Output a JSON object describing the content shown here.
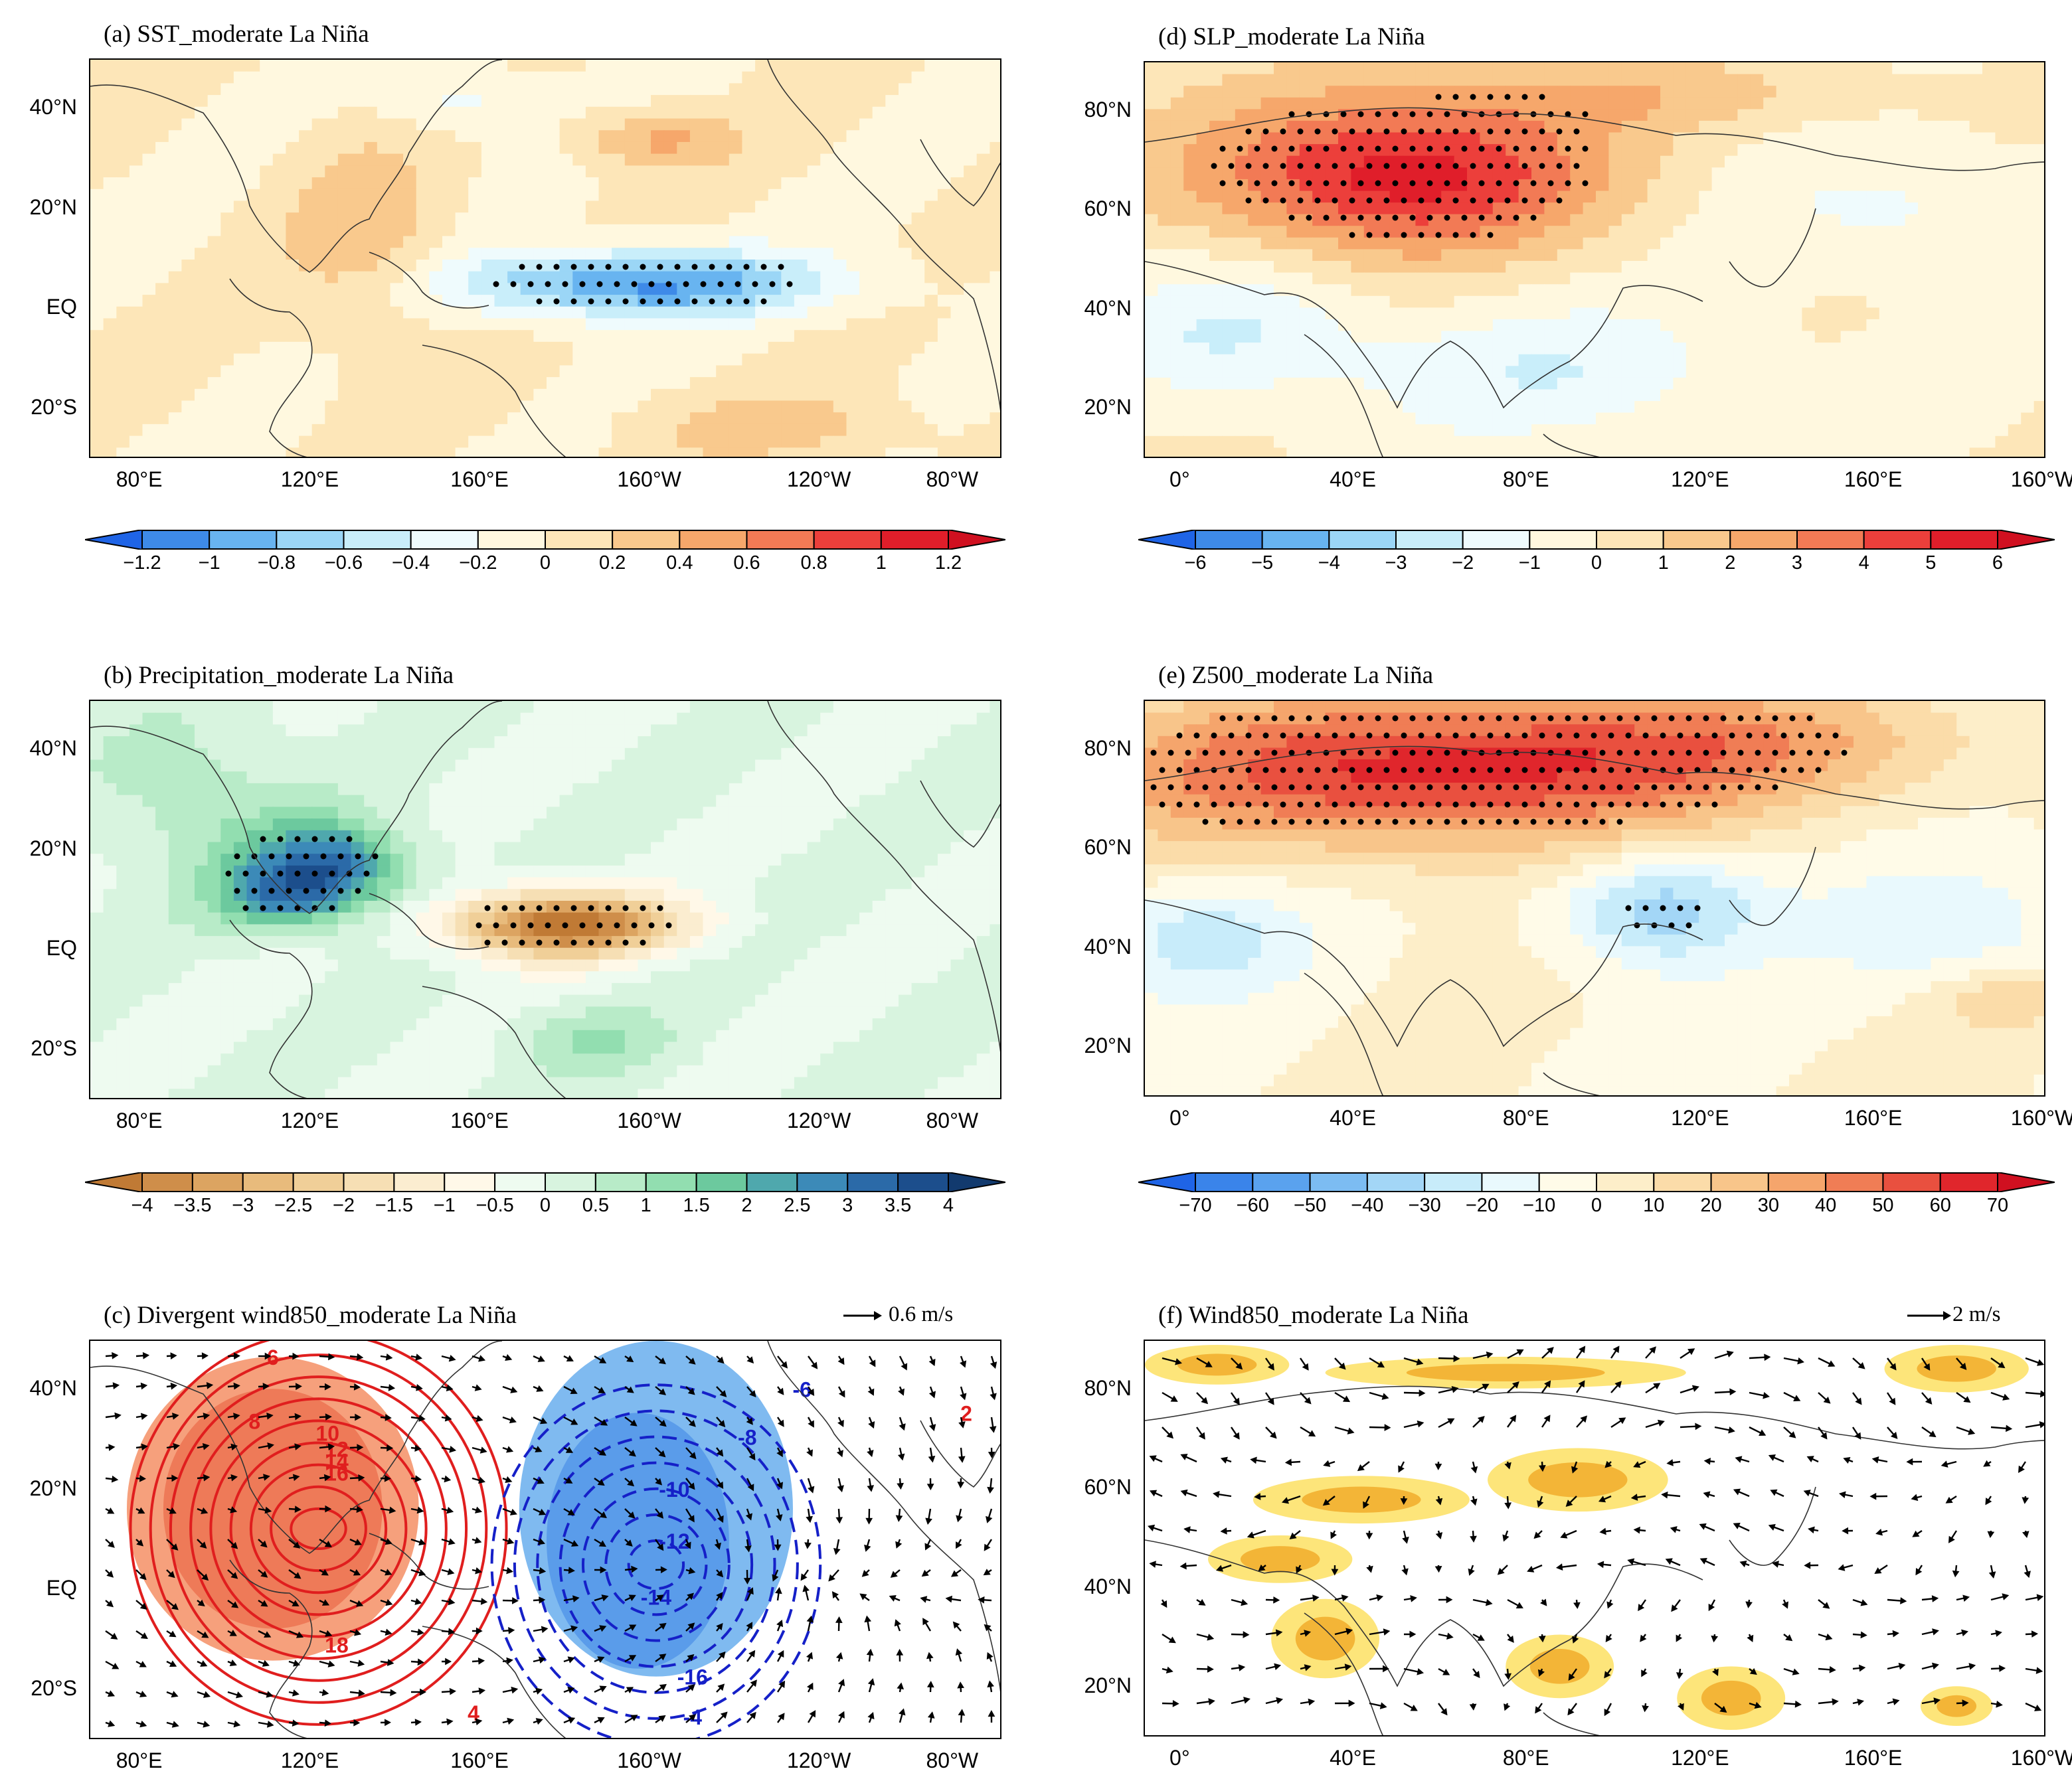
{
  "figure": {
    "panels": [
      {
        "id": "a",
        "title": "(a) SST_moderate La Niña",
        "kind": "sst"
      },
      {
        "id": "b",
        "title": "(b) Precipitation_moderate La Niña",
        "kind": "precip"
      },
      {
        "id": "c",
        "title": "(c) Divergent wind850_moderate La Niña",
        "kind": "divwind",
        "ref_vector": "0.6 m/s"
      },
      {
        "id": "d",
        "title": "(d) SLP_moderate La Niña",
        "kind": "slp"
      },
      {
        "id": "e",
        "title": "(e) Z500_moderate La Niña",
        "kind": "z500"
      },
      {
        "id": "f",
        "title": "(f) Wind850_moderate La Niña",
        "kind": "wind",
        "ref_vector": "2 m/s"
      }
    ],
    "pacific_axes": {
      "x_ticks": [
        "80°E",
        "120°E",
        "160°E",
        "160°W",
        "120°W",
        "80°W"
      ],
      "y_ticks": [
        "40°N",
        "20°N",
        "EQ",
        "20°S"
      ]
    },
    "eurasia_axes": {
      "x_ticks": [
        "0°",
        "40°E",
        "80°E",
        "120°E",
        "160°E",
        "160°W"
      ],
      "y_ticks": [
        "80°N",
        "60°N",
        "40°N",
        "20°N"
      ]
    },
    "colorbars": {
      "sst": {
        "labels": [
          "−1.2",
          "−1",
          "−0.8",
          "−0.6",
          "−0.4",
          "−0.2",
          "0",
          "0.2",
          "0.4",
          "0.6",
          "0.8",
          "1",
          "1.2"
        ],
        "colors": [
          "#1f64e6",
          "#3e8ae8",
          "#68b4f0",
          "#9bd6f6",
          "#c9eefa",
          "#effbfd",
          "#fff8df",
          "#fde6b8",
          "#f9c98d",
          "#f6a76b",
          "#f27a55",
          "#ec3f3b",
          "#e01e2a",
          "#d01020"
        ]
      },
      "slp": {
        "labels": [
          "−6",
          "−5",
          "−4",
          "−3",
          "−2",
          "−1",
          "0",
          "1",
          "2",
          "3",
          "4",
          "5",
          "6"
        ],
        "colors": [
          "#1f64e6",
          "#3e8ae8",
          "#68b4f0",
          "#9bd6f6",
          "#c9eefa",
          "#effbfd",
          "#fff8df",
          "#fde6b8",
          "#f9c98d",
          "#f6a76b",
          "#f27a55",
          "#ec3f3b",
          "#e01e2a",
          "#d01020"
        ]
      },
      "precip": {
        "labels": [
          "−4",
          "−3.5",
          "−3",
          "−2.5",
          "−2",
          "−1.5",
          "−1",
          "−0.5",
          "0",
          "0.5",
          "1",
          "1.5",
          "2",
          "2.5",
          "3",
          "3.5",
          "4"
        ],
        "colors": [
          "#c07a35",
          "#cf8e4a",
          "#dca461",
          "#e8bb7c",
          "#f0cf98",
          "#f6dfb4",
          "#fbedd0",
          "#fff8e8",
          "#eefbf0",
          "#d8f4df",
          "#b8ebc8",
          "#92deb0",
          "#6cc99e",
          "#4fa8ad",
          "#3c8ab8",
          "#2b6aa8",
          "#1c4e8c",
          "#123a6e"
        ]
      },
      "z500": {
        "labels": [
          "−70",
          "−60",
          "−50",
          "−40",
          "−30",
          "−20",
          "−10",
          "0",
          "10",
          "20",
          "30",
          "40",
          "50",
          "60",
          "70"
        ],
        "colors": [
          "#1f64e6",
          "#3a84ea",
          "#5aa2ee",
          "#7cbcf2",
          "#a3d6f6",
          "#c8ecfa",
          "#e9f9fd",
          "#fffbe8",
          "#fdeec9",
          "#fbdca9",
          "#f8c58a",
          "#f5a56c",
          "#f07d55",
          "#e9503f",
          "#e0262c",
          "#d01020"
        ]
      }
    },
    "chart_data": [
      {
        "panel": "a",
        "type": "heatmap",
        "title": "(a) SST_moderate La Niña",
        "lon_range": [
          70,
          280
        ],
        "lat_range": [
          -30,
          50
        ],
        "levels": [
          -1.2,
          -1,
          -0.8,
          -0.6,
          -0.4,
          -0.2,
          0,
          0.2,
          0.4,
          0.6,
          0.8,
          1,
          1.2
        ],
        "features": [
          {
            "name": "equatorial central-eastern Pacific cooling",
            "lon": [
              165,
              255
            ],
            "lat": [
              -8,
              8
            ],
            "min": -1.0
          },
          {
            "name": "western Pacific warming",
            "lon": [
              120,
              160
            ],
            "lat": [
              -20,
              25
            ],
            "max": 0.4
          },
          {
            "name": "north Pacific warming",
            "lon": [
              190,
              220
            ],
            "lat": [
              28,
              40
            ],
            "max": 0.5
          }
        ],
        "stippling": "95% significance"
      },
      {
        "panel": "b",
        "type": "heatmap",
        "title": "(b) Precipitation_moderate La Niña",
        "lon_range": [
          70,
          280
        ],
        "lat_range": [
          -30,
          50
        ],
        "levels": [
          -4,
          -3.5,
          -3,
          -2.5,
          -2,
          -1.5,
          -1,
          -0.5,
          0,
          0.5,
          1,
          1.5,
          2,
          2.5,
          3,
          3.5,
          4
        ],
        "features": [
          {
            "name": "maritime continent wet anomaly",
            "lon": [
              105,
              135
            ],
            "lat": [
              0,
              20
            ],
            "max": 3.5
          },
          {
            "name": "central Pacific dry anomaly",
            "lon": [
              160,
              200
            ],
            "lat": [
              -8,
              8
            ],
            "min": -3.5
          }
        ]
      },
      {
        "panel": "c",
        "type": "line",
        "title": "(c) Divergent wind850_moderate La Niña",
        "lon_range": [
          70,
          280
        ],
        "lat_range": [
          -30,
          50
        ],
        "contour_labels_positive": [
          "2",
          "4",
          "6",
          "8",
          "10",
          "12",
          "14",
          "16",
          "18"
        ],
        "contour_labels_negative": [
          "-4",
          "-6",
          "-8",
          "-10",
          "-12",
          "-14",
          "-16"
        ],
        "max_center": {
          "lon": 130,
          "lat": 12,
          "value": 18
        },
        "min_center": {
          "lon": 200,
          "lat": 0,
          "value": -16
        },
        "vector_reference": "0.6 m/s"
      },
      {
        "panel": "d",
        "type": "heatmap",
        "title": "(d) SLP_moderate La Niña",
        "lon_range": [
          -10,
          200
        ],
        "lat_range": [
          10,
          90
        ],
        "levels": [
          -6,
          -5,
          -4,
          -3,
          -2,
          -1,
          0,
          1,
          2,
          3,
          4,
          5,
          6
        ],
        "features": [
          {
            "name": "Ural-Siberian high anomaly",
            "lon": [
              20,
              120
            ],
            "lat": [
              50,
              80
            ],
            "max": 5.5
          },
          {
            "name": "South Asian low anomaly",
            "lon": [
              0,
              140
            ],
            "lat": [
              10,
              40
            ],
            "min": -2
          }
        ]
      },
      {
        "panel": "e",
        "type": "heatmap",
        "title": "(e) Z500_moderate La Niña",
        "lon_range": [
          -10,
          200
        ],
        "lat_range": [
          10,
          90
        ],
        "levels": [
          -70,
          -60,
          -50,
          -40,
          -30,
          -20,
          -10,
          0,
          10,
          20,
          30,
          40,
          50,
          60,
          70
        ],
        "features": [
          {
            "name": "Arctic-Eurasian positive anomaly",
            "lon": [
              -10,
              160
            ],
            "lat": [
              65,
              90
            ],
            "max": 65
          },
          {
            "name": "East Asian trough",
            "lon": [
              95,
              145
            ],
            "lat": [
              40,
              55
            ],
            "min": -35
          }
        ]
      },
      {
        "panel": "f",
        "type": "scatter",
        "title": "(f) Wind850_moderate La Niña",
        "lon_range": [
          -10,
          200
        ],
        "lat_range": [
          10,
          90
        ],
        "vector_reference": "2 m/s",
        "shading": "significant wind anomalies (yellow/orange)"
      }
    ]
  }
}
